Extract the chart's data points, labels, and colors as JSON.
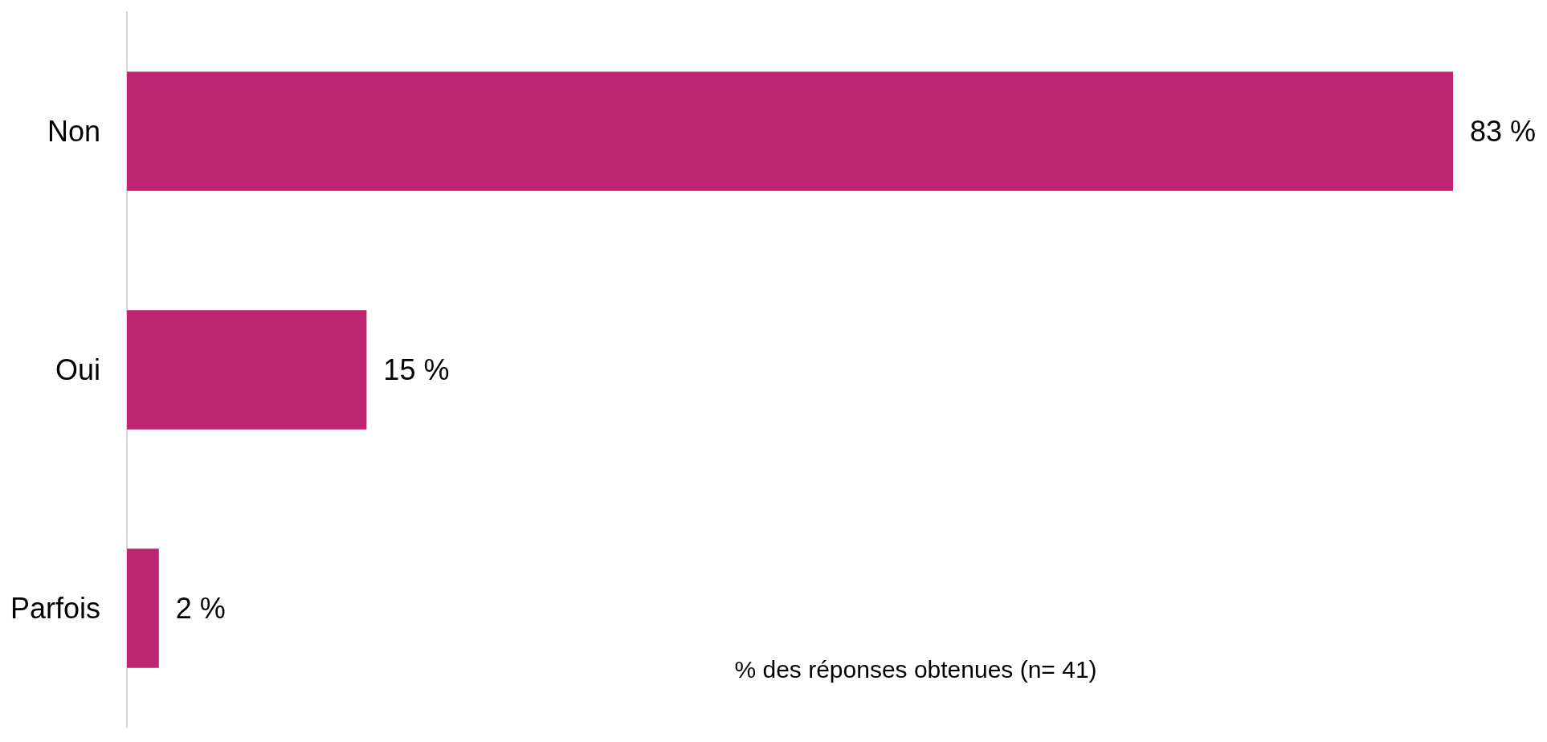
{
  "chart_data": {
    "type": "bar",
    "orientation": "horizontal",
    "categories": [
      "Non",
      "Oui",
      "Parfois"
    ],
    "values": [
      83,
      15,
      2
    ],
    "value_labels": [
      "83 %",
      "15 %",
      "2 %"
    ],
    "color": "#bd2572",
    "xlabel": "% des réponses obtenues (n= 41)"
  }
}
